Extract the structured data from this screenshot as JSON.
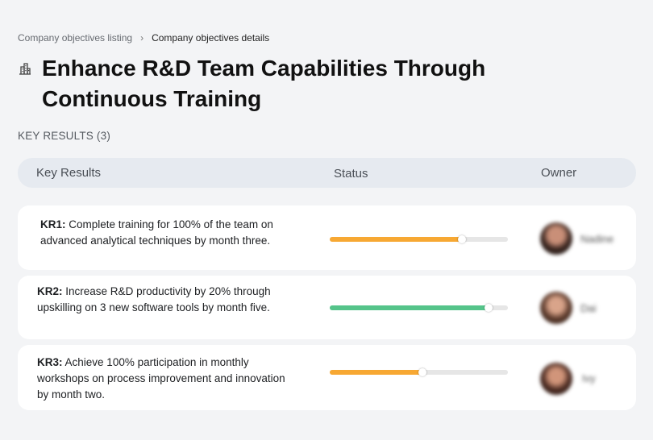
{
  "breadcrumb": {
    "parent": "Company objectives listing",
    "current": "Company objectives details"
  },
  "objective": {
    "title": "Enhance R&D Team Capabilities Through Continuous Training",
    "icon": "building-icon"
  },
  "key_results_label": "KEY RESULTS (3)",
  "table": {
    "col_key_results": "Key Results",
    "col_status": "Status",
    "col_owner": "Owner"
  },
  "colors": {
    "in_progress": "#f7a833",
    "on_track": "#55c48a",
    "track": "#e6e6e6"
  },
  "key_results": [
    {
      "code": "KR1:",
      "text": "Complete training for 100% of the team on advanced analytical techniques by month three.",
      "progress": 0.74,
      "status_color": "#f7a833",
      "owner": "Nadine"
    },
    {
      "code": "KR2:",
      "text": "Increase R&D productivity by 20% through upskilling on 3 new software tools by month five.",
      "progress": 0.89,
      "status_color": "#55c48a",
      "owner": "Dai"
    },
    {
      "code": "KR3:",
      "text": "Achieve 100% participation in monthly workshops on process improvement and innovation by month two.",
      "progress": 0.52,
      "status_color": "#f7a833",
      "owner": "Ivy"
    }
  ]
}
